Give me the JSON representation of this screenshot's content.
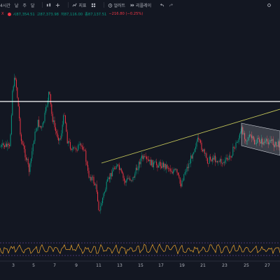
{
  "toolbar": {
    "interval_label": "4시간",
    "period_buttons": [
      "날",
      "주",
      "달"
    ],
    "indicators_label": "지표",
    "alert_label": "얼러트",
    "replay_label": "리플레이"
  },
  "ohlc": {
    "close_marker": "X",
    "open": "시87,354.51",
    "high": "고87,373.98",
    "low": "저87,116.00",
    "close": "종87,137.51",
    "change": "−216.80 (−0.25%)"
  },
  "colors": {
    "background": "#131722",
    "up": "#089981",
    "down": "#f23645",
    "hline": "#ffffff",
    "trendline": "#c7c95a",
    "oscillator": "#f0a830",
    "channel_fill": "#d1d4dc"
  },
  "x_axis_labels": [
    "3",
    "5",
    "7",
    "9",
    "11",
    "13",
    "15",
    "17",
    "19",
    "21",
    "23",
    "25",
    "27"
  ]
}
